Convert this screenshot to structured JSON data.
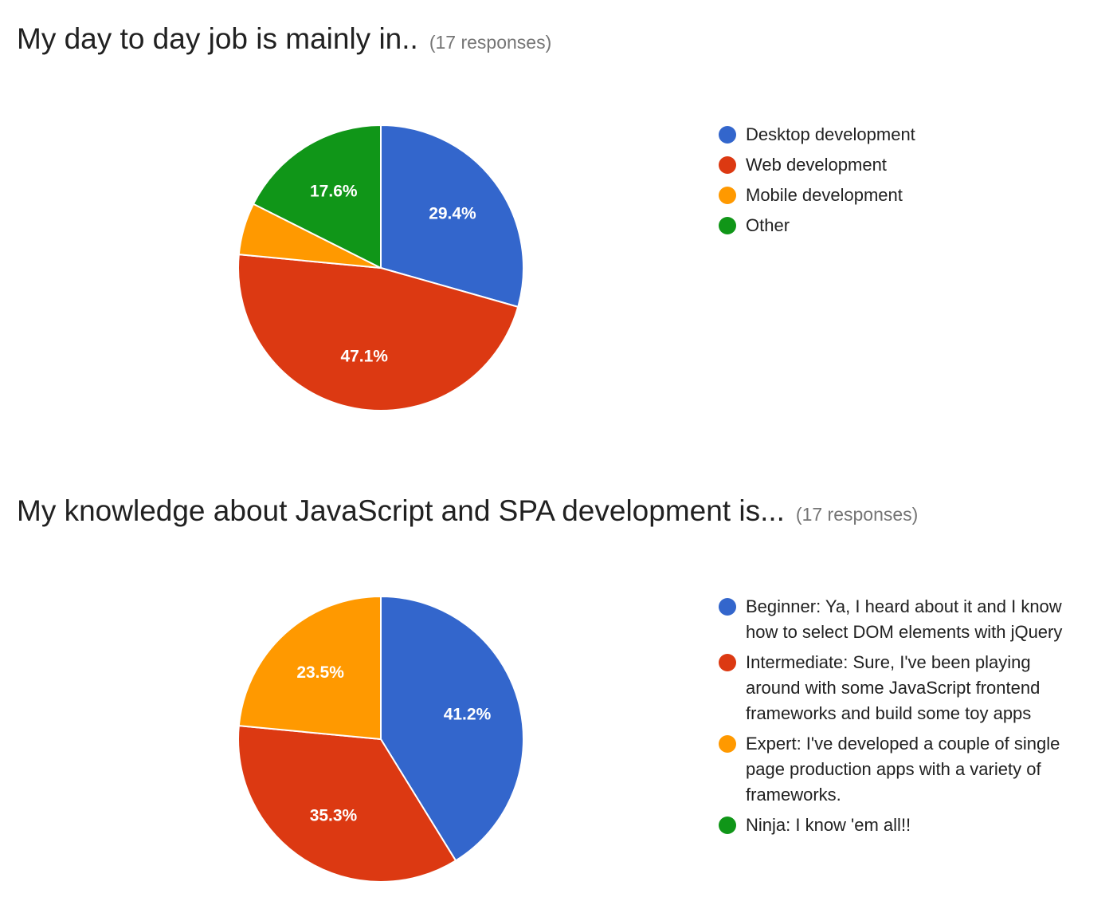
{
  "charts": [
    {
      "title": "My day to day job is mainly in..",
      "responses": "(17 responses)"
    },
    {
      "title": "My knowledge about JavaScript and SPA development is...",
      "responses": "(17 responses)"
    }
  ],
  "chart_data": [
    {
      "type": "pie",
      "title": "My day to day job is mainly in..",
      "legend_position": "right",
      "start_angle_deg": 0,
      "direction": "clockwise",
      "series": [
        {
          "name": "Desktop development",
          "value": 29.4,
          "label": "29.4%",
          "color": "#3366cc"
        },
        {
          "name": "Web development",
          "value": 47.1,
          "label": "47.1%",
          "color": "#dc3912"
        },
        {
          "name": "Mobile development",
          "value": 5.9,
          "label": "",
          "color": "#ff9900"
        },
        {
          "name": "Other",
          "value": 17.6,
          "label": "17.6%",
          "color": "#109618"
        }
      ]
    },
    {
      "type": "pie",
      "title": "My knowledge about JavaScript and SPA development is...",
      "legend_position": "right",
      "start_angle_deg": 0,
      "direction": "clockwise",
      "series": [
        {
          "name": "Beginner: Ya, I heard about it and I know how to select DOM elements with jQuery",
          "value": 41.2,
          "label": "41.2%",
          "color": "#3366cc"
        },
        {
          "name": "Intermediate: Sure, I've been playing around with some JavaScript frontend frameworks and build some toy apps",
          "value": 35.3,
          "label": "35.3%",
          "color": "#dc3912"
        },
        {
          "name": "Expert: I've developed a couple of single page production apps with a variety of frameworks.",
          "value": 23.5,
          "label": "23.5%",
          "color": "#ff9900"
        },
        {
          "name": "Ninja: I know 'em all!!",
          "value": 0,
          "label": "",
          "color": "#109618"
        }
      ]
    }
  ]
}
